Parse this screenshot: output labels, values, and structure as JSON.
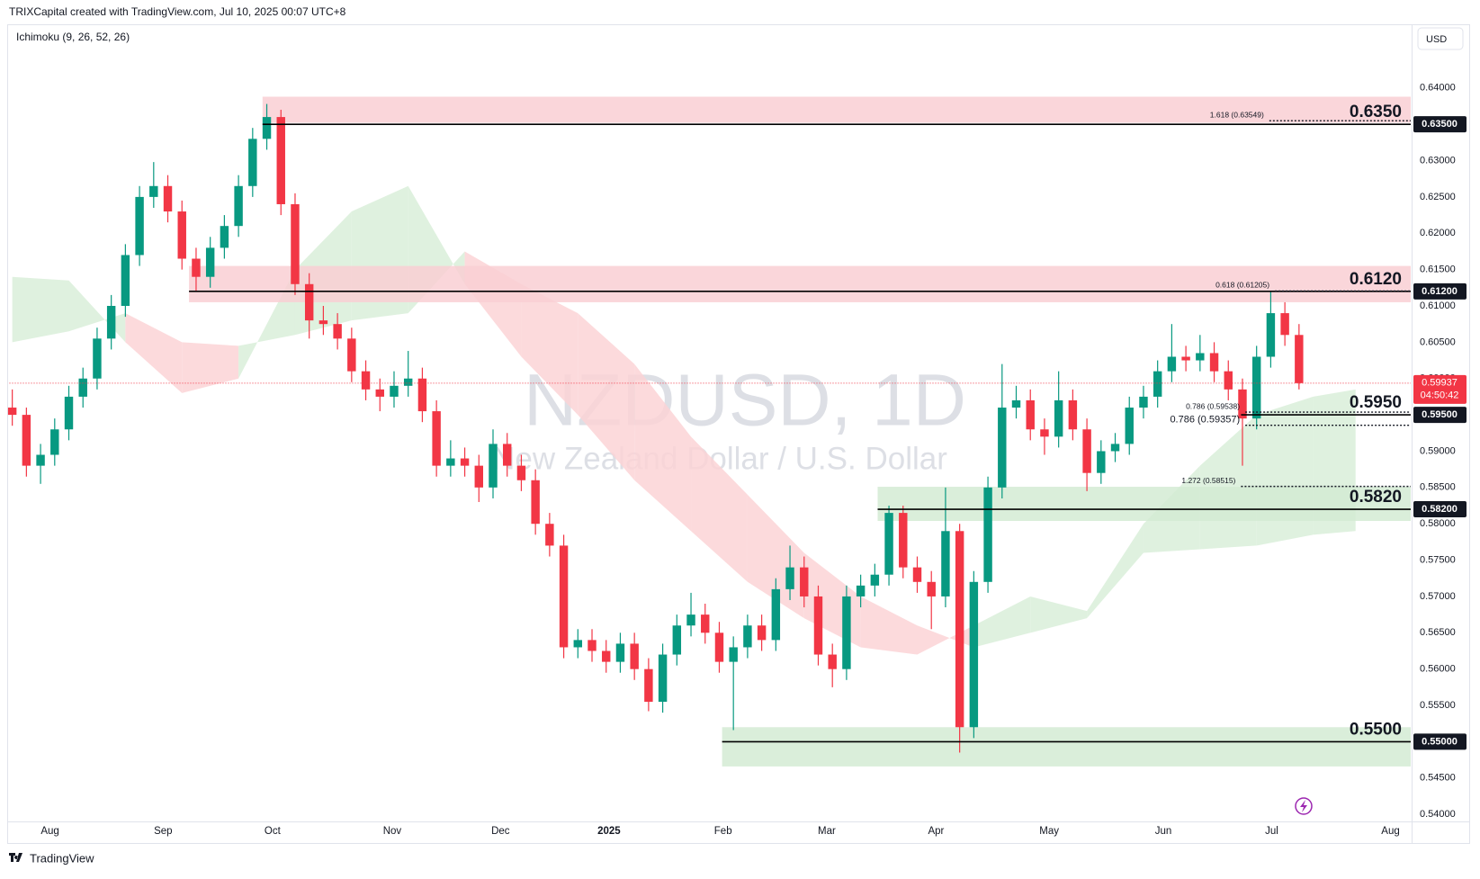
{
  "header": {
    "attribution": "TRIXCapital created with TradingView.com, Jul 10, 2025 00:07 UTC+8",
    "indicator": "Ichimoku (9, 26, 52, 26)",
    "currency": "USD"
  },
  "footer": {
    "brand": "TradingView"
  },
  "chart_data": {
    "type": "candlestick",
    "title": "NZDUSD, 1D",
    "subtitle": "New Zealand Dollar / U.S. Dollar",
    "up_color": "#089981",
    "down_color": "#f23645",
    "open": [
      0.596,
      0.595,
      0.588,
      0.5895,
      0.593,
      0.5975,
      0.6,
      0.6055,
      0.61,
      0.617,
      0.625,
      0.6265,
      0.623,
      0.6165,
      0.614,
      0.618,
      0.621,
      0.6265,
      0.633,
      0.636,
      0.624,
      0.613,
      0.608,
      0.6075,
      0.6055,
      0.601,
      0.5985,
      0.5975,
      0.599,
      0.6,
      0.5955,
      0.588,
      0.589,
      0.588,
      0.585,
      0.591,
      0.588,
      0.586,
      0.58,
      0.577,
      0.563,
      0.564,
      0.5625,
      0.561,
      0.5635,
      0.56,
      0.5555,
      0.562,
      0.566,
      0.5675,
      0.565,
      0.561,
      0.563,
      0.566,
      0.564,
      0.571,
      0.574,
      0.57,
      0.562,
      0.56,
      0.57,
      0.5715,
      0.573,
      0.5815,
      0.574,
      0.572,
      0.57,
      0.579,
      0.552,
      0.572,
      0.585,
      0.596,
      0.597,
      0.593,
      0.592,
      0.597,
      0.593,
      0.587,
      0.59,
      0.591,
      0.596,
      0.5975,
      0.601,
      0.603,
      0.6025,
      0.6035,
      0.601,
      0.5985,
      0.5945,
      0.603,
      0.609,
      0.606
    ],
    "high": [
      0.5985,
      0.596,
      0.591,
      0.5945,
      0.599,
      0.6015,
      0.607,
      0.6115,
      0.6185,
      0.6265,
      0.6298,
      0.628,
      0.6245,
      0.618,
      0.6195,
      0.6225,
      0.628,
      0.6345,
      0.6378,
      0.637,
      0.6255,
      0.6145,
      0.61,
      0.609,
      0.607,
      0.6025,
      0.6,
      0.601,
      0.6038,
      0.6015,
      0.597,
      0.5915,
      0.5905,
      0.5895,
      0.593,
      0.5925,
      0.5895,
      0.5875,
      0.5815,
      0.5785,
      0.5655,
      0.5655,
      0.564,
      0.565,
      0.565,
      0.5615,
      0.5635,
      0.5675,
      0.5705,
      0.569,
      0.5665,
      0.5645,
      0.5675,
      0.5675,
      0.5725,
      0.577,
      0.5755,
      0.5715,
      0.5635,
      0.5715,
      0.573,
      0.5745,
      0.5825,
      0.5825,
      0.5755,
      0.5735,
      0.585,
      0.58,
      0.5735,
      0.5865,
      0.602,
      0.599,
      0.5985,
      0.5945,
      0.601,
      0.5985,
      0.5945,
      0.5915,
      0.5925,
      0.5975,
      0.599,
      0.6025,
      0.6075,
      0.6045,
      0.606,
      0.605,
      0.6025,
      0.6,
      0.6045,
      0.612,
      0.6105,
      0.6075
    ],
    "low": [
      0.5935,
      0.5865,
      0.5855,
      0.588,
      0.5915,
      0.596,
      0.5985,
      0.604,
      0.6085,
      0.6155,
      0.6235,
      0.6215,
      0.615,
      0.612,
      0.6125,
      0.6165,
      0.6195,
      0.625,
      0.6315,
      0.6225,
      0.6115,
      0.6055,
      0.606,
      0.604,
      0.5995,
      0.597,
      0.5955,
      0.596,
      0.5975,
      0.594,
      0.5865,
      0.5865,
      0.5865,
      0.583,
      0.5835,
      0.5865,
      0.5845,
      0.5785,
      0.5755,
      0.5615,
      0.5615,
      0.561,
      0.5595,
      0.5595,
      0.5585,
      0.5542,
      0.554,
      0.5605,
      0.5645,
      0.5635,
      0.5595,
      0.5516,
      0.5615,
      0.5625,
      0.5625,
      0.5695,
      0.5685,
      0.5605,
      0.5575,
      0.5585,
      0.5685,
      0.57,
      0.5715,
      0.5725,
      0.5705,
      0.5655,
      0.5685,
      0.5485,
      0.5505,
      0.5705,
      0.5835,
      0.5945,
      0.5915,
      0.5895,
      0.5905,
      0.5915,
      0.5845,
      0.5855,
      0.5885,
      0.5895,
      0.5945,
      0.596,
      0.5995,
      0.601,
      0.601,
      0.5995,
      0.597,
      0.588,
      0.593,
      0.6015,
      0.6045,
      0.5985
    ],
    "close": [
      0.595,
      0.588,
      0.5895,
      0.593,
      0.5975,
      0.6,
      0.6055,
      0.61,
      0.617,
      0.625,
      0.6265,
      0.623,
      0.6165,
      0.614,
      0.618,
      0.621,
      0.6265,
      0.633,
      0.636,
      0.624,
      0.613,
      0.608,
      0.6075,
      0.6055,
      0.601,
      0.5985,
      0.5975,
      0.599,
      0.6,
      0.5955,
      0.588,
      0.589,
      0.588,
      0.585,
      0.591,
      0.588,
      0.586,
      0.58,
      0.577,
      0.563,
      0.564,
      0.5625,
      0.561,
      0.5635,
      0.56,
      0.5555,
      0.562,
      0.566,
      0.5675,
      0.565,
      0.561,
      0.563,
      0.566,
      0.564,
      0.571,
      0.574,
      0.57,
      0.562,
      0.56,
      0.57,
      0.5715,
      0.573,
      0.5815,
      0.574,
      0.572,
      0.57,
      0.579,
      0.552,
      0.572,
      0.585,
      0.596,
      0.597,
      0.593,
      0.592,
      0.597,
      0.593,
      0.587,
      0.59,
      0.591,
      0.596,
      0.5975,
      0.601,
      0.603,
      0.6025,
      0.6035,
      0.601,
      0.5985,
      0.5945,
      0.603,
      0.609,
      0.606,
      0.59937
    ],
    "cloud": {
      "x": [
        0,
        4,
        8,
        12,
        16,
        20,
        24,
        28,
        32,
        36,
        40,
        44,
        48,
        52,
        56,
        60,
        64,
        68,
        72,
        76,
        80,
        84,
        88,
        92,
        95
      ],
      "span_a": [
        0.614,
        0.6135,
        0.605,
        0.598,
        0.6,
        0.615,
        0.623,
        0.6265,
        0.613,
        0.603,
        0.595,
        0.586,
        0.579,
        0.572,
        0.567,
        0.563,
        0.562,
        0.566,
        0.57,
        0.568,
        0.58,
        0.588,
        0.595,
        0.5975,
        0.5985
      ],
      "span_b": [
        0.605,
        0.6065,
        0.609,
        0.605,
        0.6045,
        0.606,
        0.608,
        0.609,
        0.6175,
        0.613,
        0.609,
        0.602,
        0.592,
        0.584,
        0.576,
        0.57,
        0.566,
        0.563,
        0.565,
        0.567,
        0.576,
        0.5765,
        0.577,
        0.5785,
        0.579
      ],
      "up_color": "#d9efd9",
      "down_color": "#fbd3d6"
    },
    "levels": [
      {
        "label": "0.6350",
        "value": 0.635,
        "axis_label": "0.63500",
        "zone": [
          0.6352,
          0.6388
        ],
        "from": 17.7,
        "color": "#f9cfd3"
      },
      {
        "label": "0.6120",
        "value": 0.612,
        "axis_label": "0.61200",
        "zone": [
          0.6105,
          0.6155
        ],
        "from": 12.5,
        "color": "#f9cfd3"
      },
      {
        "label": "0.5950",
        "value": 0.595,
        "axis_label": "0.59500",
        "from": 86.9
      },
      {
        "label": "0.5820",
        "value": 0.582,
        "axis_label": "0.58200",
        "zone": [
          0.5804,
          0.5851
        ],
        "from": 61.2,
        "color": "#d3ebd3"
      },
      {
        "label": "0.5500",
        "value": 0.55,
        "axis_label": "0.55000",
        "zone": [
          0.5466,
          0.552
        ],
        "from": 50.2,
        "color": "#d3ebd3"
      }
    ],
    "fib": [
      {
        "label": "1.618 (0.63549)",
        "value": 0.63549,
        "from": 88.9
      },
      {
        "label": "0.618 (0.61205)",
        "value": 0.61205,
        "from": 89.3
      },
      {
        "label": "0.786 (0.59538)",
        "value": 0.59538,
        "from": 87.2
      },
      {
        "label": "0.786 (0.59357)",
        "value": 0.59357,
        "from": 87.2
      },
      {
        "label": "1.272 (0.58515)",
        "value": 0.58515,
        "from": 86.9
      }
    ],
    "last_price": {
      "value": 0.59937,
      "label": "0.59937",
      "countdown": "04:50:42",
      "color": "#f23645"
    },
    "xlim": [
      -0.2,
      98.9
    ],
    "xticks": [
      {
        "value": 2.67,
        "label": "Aug"
      },
      {
        "value": 10.67,
        "label": "Sep"
      },
      {
        "value": 18.4,
        "label": "Oct"
      },
      {
        "value": 26.87,
        "label": "Nov"
      },
      {
        "value": 34.53,
        "label": "Dec"
      },
      {
        "value": 42.2,
        "label": "2025"
      },
      {
        "value": 50.27,
        "label": "Feb"
      },
      {
        "value": 57.6,
        "label": "Mar"
      },
      {
        "value": 65.33,
        "label": "Apr"
      },
      {
        "value": 73.33,
        "label": "May"
      },
      {
        "value": 81.4,
        "label": "Jun"
      },
      {
        "value": 89.07,
        "label": "Jul"
      },
      {
        "value": 97.47,
        "label": "Aug"
      }
    ],
    "ylim": [
      0.5394,
      0.6453
    ],
    "yticks": [
      {
        "value": 0.54,
        "label": "0.54000"
      },
      {
        "value": 0.545,
        "label": "0.54500"
      },
      {
        "value": 0.55,
        "label": "0.55000"
      },
      {
        "value": 0.555,
        "label": "0.55500"
      },
      {
        "value": 0.56,
        "label": "0.56000"
      },
      {
        "value": 0.565,
        "label": "0.56500"
      },
      {
        "value": 0.57,
        "label": "0.57000"
      },
      {
        "value": 0.575,
        "label": "0.57500"
      },
      {
        "value": 0.58,
        "label": "0.58000"
      },
      {
        "value": 0.585,
        "label": "0.58500"
      },
      {
        "value": 0.59,
        "label": "0.59000"
      },
      {
        "value": 0.595,
        "label": "0.59500"
      },
      {
        "value": 0.6,
        "label": "0.60000"
      },
      {
        "value": 0.605,
        "label": "0.60500"
      },
      {
        "value": 0.61,
        "label": "0.61000"
      },
      {
        "value": 0.615,
        "label": "0.61500"
      },
      {
        "value": 0.62,
        "label": "0.62000"
      },
      {
        "value": 0.625,
        "label": "0.62500"
      },
      {
        "value": 0.63,
        "label": "0.63000"
      },
      {
        "value": 0.635,
        "label": "0.63500"
      },
      {
        "value": 0.64,
        "label": "0.64000"
      }
    ],
    "grid": false
  }
}
